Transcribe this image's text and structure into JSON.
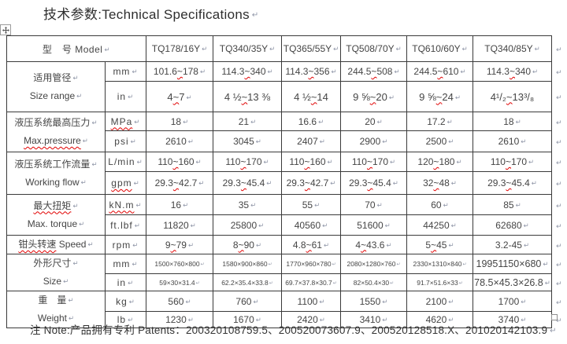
{
  "title": "技术参数:Technical Specifications",
  "icons": {
    "move": "table-move-icon",
    "resize": "table-resize-icon"
  },
  "table": {
    "model_label": "型　号 Model",
    "models": [
      "TQ178/16Y",
      "TQ340/35Y",
      "TQ365/55Y",
      "TQ508/70Y",
      "TQ610/60Y",
      "TQ340/85Y"
    ],
    "groups": [
      {
        "cn": "适用管径",
        "en": "Size range",
        "rows": [
          {
            "unit": "mm",
            "values": [
              "101.6~178",
              "114.3~340",
              "114.3~356",
              "244.5~508",
              "244.5~610",
              "114.3~340"
            ]
          },
          {
            "unit": "in",
            "values": [
              "4~7",
              "4 ½~13 ⅜",
              "4 ½~14",
              "9 ⅝~20",
              "9 ⅝~24",
              "4¹/₂~13³/₈"
            ]
          }
        ]
      },
      {
        "cn": "液压系统最高压力",
        "en": "Max.pressure",
        "rows": [
          {
            "unit": "MPa",
            "values": [
              "18",
              "21",
              "16.6",
              "20",
              "17.2",
              "18"
            ]
          },
          {
            "unit": "psi",
            "values": [
              "2610",
              "3045",
              "2407",
              "2900",
              "2500",
              "2610"
            ]
          }
        ]
      },
      {
        "cn": "液压系统工作流量",
        "en": "Working flow",
        "rows": [
          {
            "unit": "L/min",
            "values": [
              "110~160",
              "110~170",
              "110~160",
              "110~170",
              "120~180",
              "110~170"
            ]
          },
          {
            "unit": "gpm",
            "values": [
              "29.3~42.7",
              "29.3~45.4",
              "29.3~42.7",
              "29.3~45.4",
              "32~48",
              "29.3~45.4"
            ]
          }
        ]
      },
      {
        "cn": "最大扭矩",
        "en": "Max. torque",
        "rows": [
          {
            "unit": "kN.m",
            "values": [
              "16",
              "35",
              "55",
              "70",
              "60",
              "85"
            ]
          },
          {
            "unit": "ft.lbf",
            "values": [
              "11820",
              "25800",
              "40560",
              "51600",
              "44250",
              "62680"
            ]
          }
        ]
      },
      {
        "cn": "钳头转速",
        "en": "Speed",
        "rows": [
          {
            "unit": "rpm",
            "values": [
              "9~79",
              "8~90",
              "4.8~61",
              "4~43.6",
              "5~45",
              "3.2-45"
            ]
          }
        ]
      },
      {
        "cn": "外形尺寸",
        "en": "Size",
        "rows": [
          {
            "unit": "mm",
            "values": [
              "1500×760×800",
              "1580×900×860",
              "1770×960×780",
              "2080×1280×760",
              "2330×1310×840",
              "19951150×680"
            ]
          },
          {
            "unit": "in",
            "values": [
              "59×30×31.4",
              "62.2×35.4×33.8",
              "69.7×37.8×30.7",
              "82×50.4×30",
              "91.7×51.6×33",
              "78.5×45.3×26.8"
            ]
          }
        ]
      },
      {
        "cn": "重　量",
        "en": "Weight",
        "rows": [
          {
            "unit": "kg",
            "values": [
              "560",
              "760",
              "1100",
              "1550",
              "2100",
              "1700"
            ]
          },
          {
            "unit": "lb",
            "values": [
              "1230",
              "1670",
              "2420",
              "3410",
              "4620",
              "3740"
            ]
          }
        ]
      }
    ]
  },
  "note": "注 Note:产品拥有专利 Patents：200320108759.5、200520073607.9、200520128518.X、201020142103.9"
}
